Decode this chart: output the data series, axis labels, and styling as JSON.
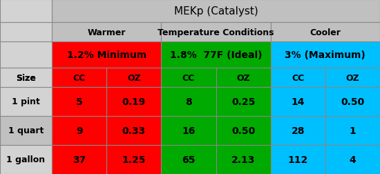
{
  "title": "MEKp (Catalyst)",
  "subtitle_warmer": "Warmer",
  "subtitle_temp": "Temperature Conditions",
  "subtitle_cooler": "Cooler",
  "col_headers": [
    "1.2% Minimum",
    "1.8%  77F (Ideal)",
    "3% (Maximum)"
  ],
  "col_subheaders": [
    "CC",
    "OZ",
    "CC",
    "OZ",
    "CC",
    "OZ"
  ],
  "row_labels": [
    "Size",
    "1 pint",
    "1 quart",
    "1 gallon"
  ],
  "data": [
    [
      "5",
      "0.19",
      "8",
      "0.25",
      "14",
      "0.50"
    ],
    [
      "9",
      "0.33",
      "16",
      "0.50",
      "28",
      "1"
    ],
    [
      "37",
      "1.25",
      "65",
      "2.13",
      "112",
      "4"
    ]
  ],
  "color_red": "#FF0000",
  "color_green": "#00AA00",
  "color_cyan": "#00BFFF",
  "color_light_gray": "#D3D3D3",
  "color_gray_header": "#C0C0C0",
  "color_white": "#FFFFFF",
  "color_dark_text": "#000000",
  "color_light_text": "#FFFFFF",
  "border_color": "#888888"
}
